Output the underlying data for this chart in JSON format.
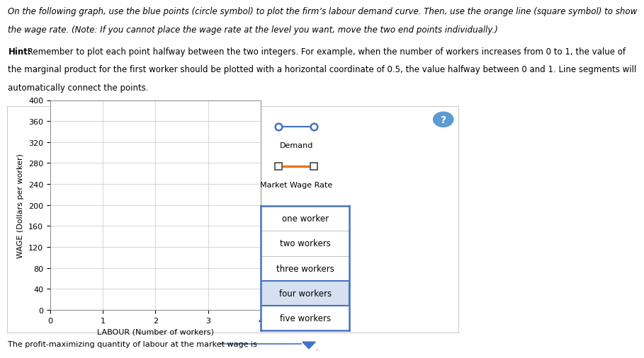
{
  "line1": "On the following graph, use the blue points (circle symbol) to plot the firm’s labour demand curve. Then, use the orange line (square symbol) to show",
  "line2_italic": "the wage rate. (",
  "line2_bold": "Note",
  "line2_rest": ": If you cannot place the wage rate at the level you want, move the two end points individually.)",
  "hint_bold": "Hint:",
  "hint_rest": " Remember to plot each point halfway between the two integers. For example, when the number of workers increases from 0 to 1, the value of",
  "hint_line2": "the marginal product for the first worker should be plotted with a horizontal coordinate of 0.5, the value halfway between 0 and 1. Line segments will",
  "hint_line3": "automatically connect the points.",
  "xlabel": "LABOUR (Number of workers)",
  "ylabel": "WAGE (Dollars per worker)",
  "xlim": [
    0,
    4
  ],
  "ylim": [
    0,
    400
  ],
  "xticks": [
    0,
    1,
    2,
    3,
    4
  ],
  "yticks": [
    0,
    40,
    80,
    120,
    160,
    200,
    240,
    280,
    320,
    360,
    400
  ],
  "demand_label": "Demand",
  "wage_label": "Market Wage Rate",
  "demand_color": "#4472C4",
  "wage_color": "#E87722",
  "grid_color": "#D0D0D0",
  "outer_box_color": "#BBBBBB",
  "inner_plot_bg": "#FFFFFF",
  "outer_bg": "#FFFFFF",
  "dropdown_items": [
    "one worker",
    "two workers",
    "three workers",
    "four workers",
    "five workers"
  ],
  "dropdown_selected": "four workers",
  "dropdown_selected_bg": "#D6E0F0",
  "bottom_text": "The profit-maximizing quantity of labour at the market wage is",
  "question_circle_color": "#5B9BD5",
  "legend_demand_marker_color": "#4472C4",
  "legend_demand_marker_face": "#FFFFFF",
  "legend_wage_marker_face": "#FFFFFF",
  "legend_wage_marker_edge": "#555555",
  "font_size_text": 8.5,
  "font_size_axis": 8,
  "font_size_tick": 8
}
